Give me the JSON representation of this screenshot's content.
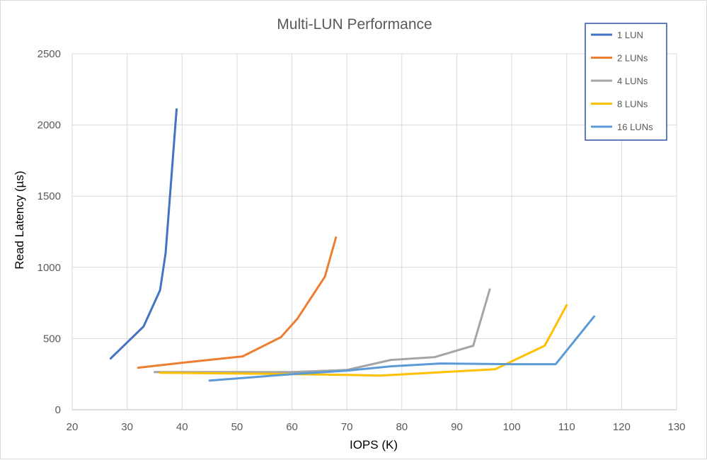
{
  "chart_data": {
    "type": "line",
    "title": "Multi-LUN Performance",
    "xlabel": "IOPS (K)",
    "ylabel": "Read Latency (µs)",
    "xlim": [
      20,
      130
    ],
    "ylim": [
      0,
      2500
    ],
    "x_ticks": [
      "20",
      "30",
      "40",
      "50",
      "60",
      "70",
      "80",
      "90",
      "100",
      "110",
      "120",
      "130"
    ],
    "y_ticks": [
      "0",
      "500",
      "1000",
      "1500",
      "2000",
      "2500"
    ],
    "grid": "vertical and horizontal",
    "legend_position": "top-right",
    "series": [
      {
        "name": "1 LUN",
        "color": "#4472C4",
        "x": [
          27,
          33,
          36,
          37,
          38,
          39
        ],
        "y": [
          360,
          585,
          840,
          1100,
          1600,
          2110
        ]
      },
      {
        "name": "2 LUNs",
        "color": "#ED7D31",
        "x": [
          32,
          40,
          51,
          58,
          61,
          66,
          68
        ],
        "y": [
          295,
          330,
          375,
          510,
          640,
          935,
          1210
        ]
      },
      {
        "name": "4 LUNs",
        "color": "#A5A5A5",
        "x": [
          35,
          50,
          60,
          70,
          78,
          86,
          93,
          96
        ],
        "y": [
          265,
          265,
          265,
          280,
          350,
          370,
          450,
          845
        ]
      },
      {
        "name": "8 LUNs",
        "color": "#FFC000",
        "x": [
          36,
          50,
          70,
          76,
          90,
          97,
          106,
          110
        ],
        "y": [
          260,
          255,
          245,
          240,
          270,
          285,
          450,
          735
        ]
      },
      {
        "name": "16 LUNs",
        "color": "#5B9BD5",
        "x": [
          45,
          60,
          70,
          78,
          87,
          100,
          108,
          115
        ],
        "y": [
          205,
          250,
          275,
          305,
          325,
          320,
          320,
          655
        ]
      }
    ]
  }
}
